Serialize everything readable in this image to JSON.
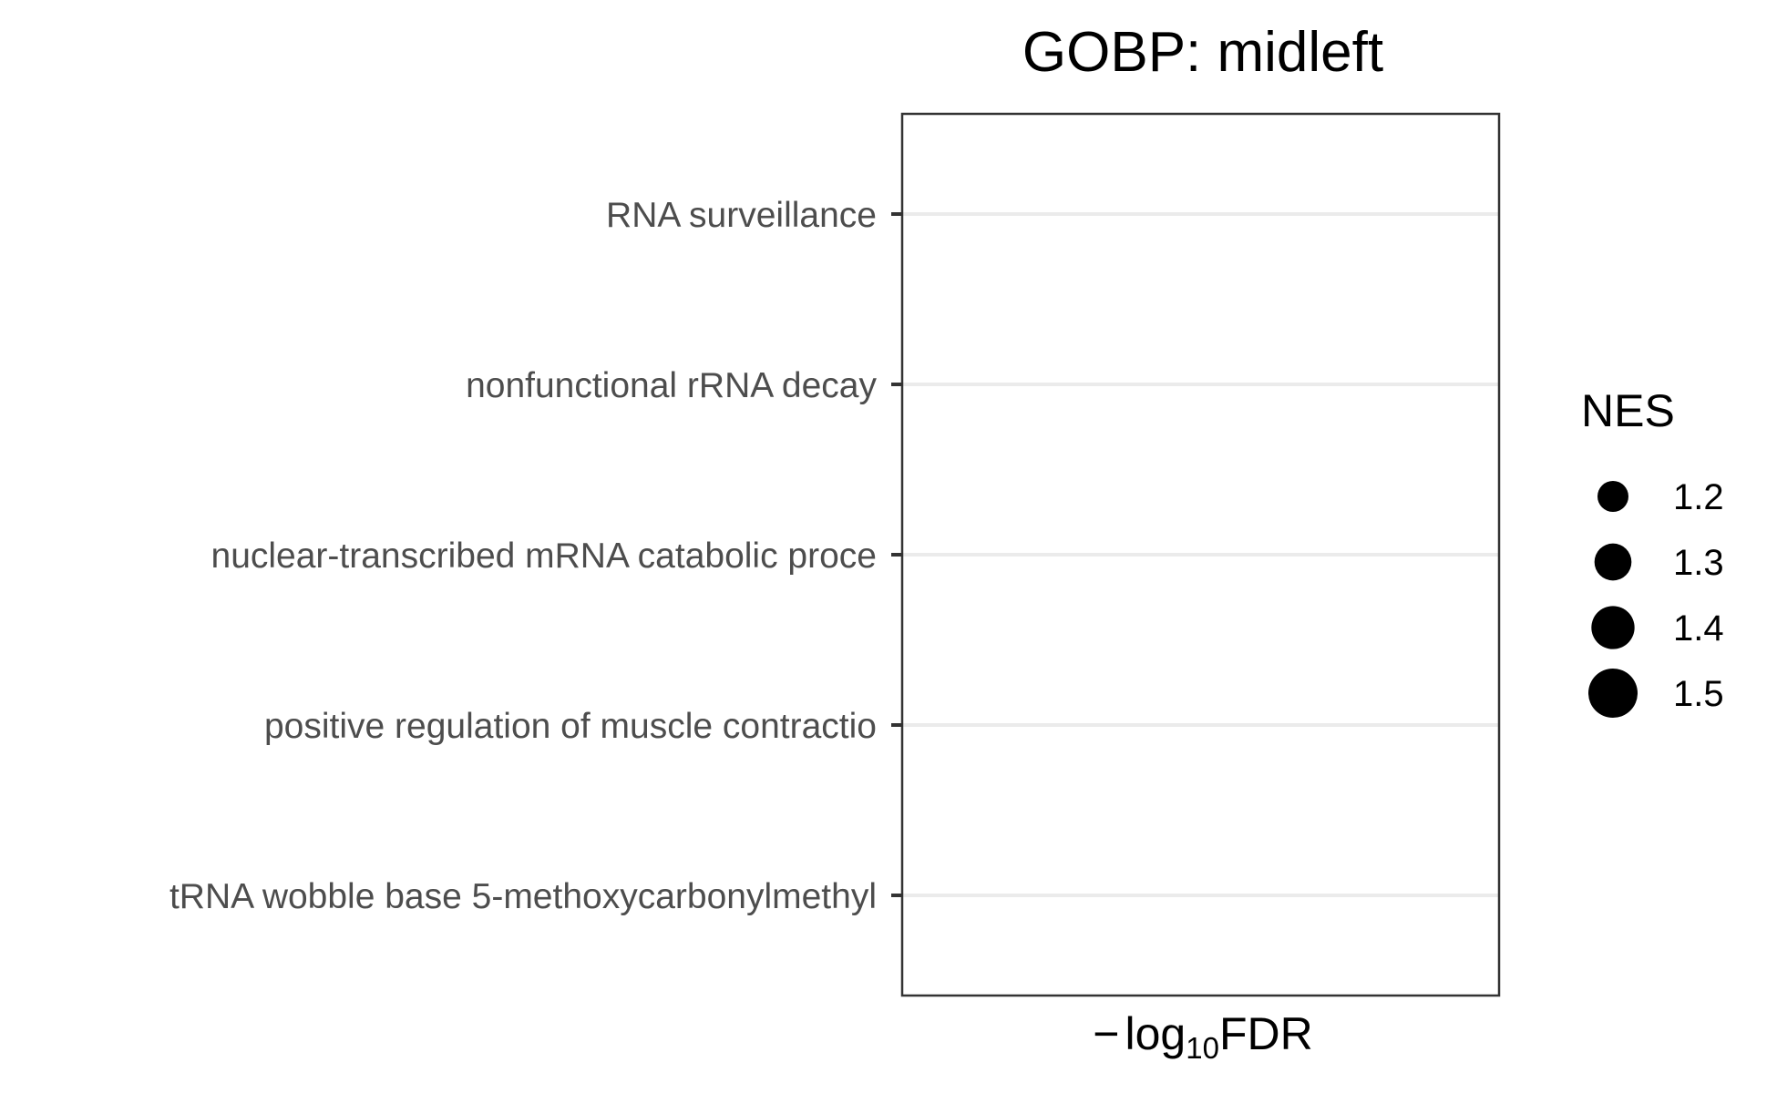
{
  "chart_data": {
    "type": "scatter",
    "title": "GOBP: midleft",
    "xlabel": {
      "prefix": "−",
      "base": "log",
      "subscript": "10",
      "rest": "FDR"
    },
    "ylabel": "",
    "categories": [
      "RNA surveillance",
      "nonfunctional rRNA decay",
      "nuclear-transcribed mRNA catabolic proce",
      "positive regulation of muscle contractio",
      "tRNA wobble base 5-methoxycarbonylmethyl"
    ],
    "series": [],
    "grid": true,
    "legend": {
      "title": "NES",
      "position": "right",
      "entries": [
        {
          "label": "1.2",
          "value": 1.2
        },
        {
          "label": "1.3",
          "value": 1.3
        },
        {
          "label": "1.4",
          "value": 1.4
        },
        {
          "label": "1.5",
          "value": 1.5
        }
      ]
    }
  },
  "colors": {
    "panel_border": "#333333",
    "grid": "#ebebeb",
    "tick_label": "#4d4d4d",
    "tick": "#333333",
    "legend_point": "#000000"
  }
}
